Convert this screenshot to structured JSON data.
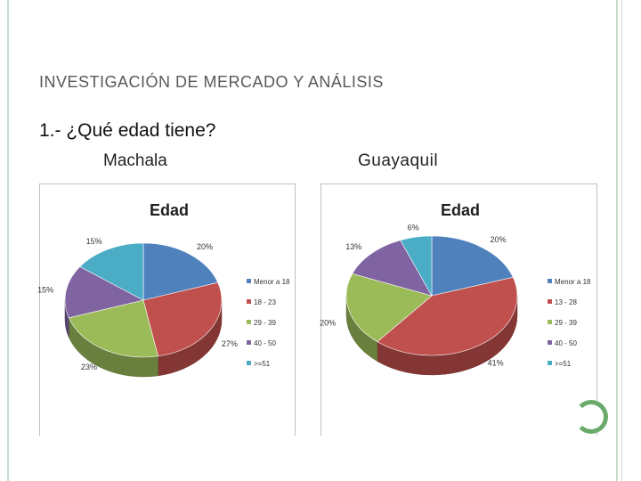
{
  "slide": {
    "title": "INVESTIGACIÓN  DE MERCADO Y ANÁLISIS",
    "question": "1.-  ¿Qué edad tiene?"
  },
  "chart_data": [
    {
      "type": "pie",
      "location": "Machala",
      "title": "Edad",
      "categories": [
        "Menor a 18",
        "18 - 23",
        "29 - 39",
        "40 - 50",
        ">=51"
      ],
      "values": [
        20,
        27,
        23,
        15,
        15
      ],
      "labels": [
        "20%",
        "27%",
        "23%",
        "15%",
        "15%"
      ],
      "colors": [
        "#4f81bd",
        "#c0504d",
        "#9bbb59",
        "#8064a2",
        "#4bacc6"
      ],
      "legend_position": "right"
    },
    {
      "type": "pie",
      "location": "Guayaquil",
      "title": "Edad",
      "categories": [
        "Menor a 18",
        "13 - 28",
        "29 - 39",
        "40 - 50",
        ">=51"
      ],
      "values": [
        20,
        41,
        20,
        13,
        6
      ],
      "labels": [
        "20%",
        "41%",
        "20%",
        "13%",
        "6%"
      ],
      "colors": [
        "#4f81bd",
        "#c0504d",
        "#9bbb59",
        "#8064a2",
        "#4bacc6"
      ],
      "legend_position": "right"
    }
  ]
}
